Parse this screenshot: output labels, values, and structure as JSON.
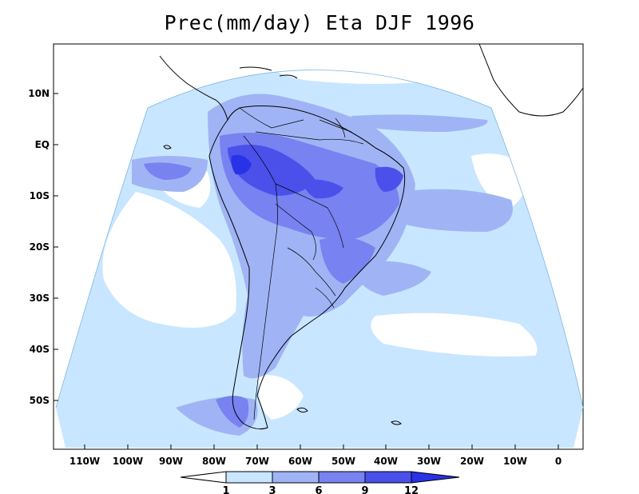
{
  "title": "Prec(mm/day) Eta DJF 1996",
  "axes": {
    "lat_ticks": [
      "10N",
      "EQ",
      "10S",
      "20S",
      "30S",
      "40S",
      "50S"
    ],
    "lon_ticks": [
      "110W",
      "100W",
      "90W",
      "80W",
      "70W",
      "60W",
      "50W",
      "40W",
      "30W",
      "20W",
      "10W",
      "0"
    ]
  },
  "colorbar": {
    "labels": [
      "1",
      "3",
      "6",
      "9",
      "12"
    ],
    "colors": [
      "#ffffff",
      "#c8e6ff",
      "#a0b4f5",
      "#7882f0",
      "#4b50eb",
      "#2832e6"
    ]
  },
  "palette": {
    "lt1": "#ffffff",
    "c1_3": "#c8e6ff",
    "c3_6": "#a0b4f5",
    "c6_9": "#7882f0",
    "c9_12": "#4b50eb",
    "gt12": "#2832e6"
  }
}
